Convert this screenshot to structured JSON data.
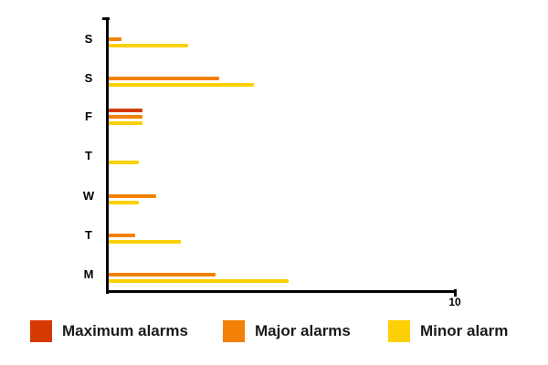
{
  "chart_data": {
    "type": "bar",
    "orientation": "horizontal",
    "title": "",
    "xlabel": "",
    "ylabel": "",
    "xlim": [
      0,
      10
    ],
    "x_axis_tick_label": "10",
    "grid": false,
    "legend_position": "bottom",
    "categories": [
      "S",
      "S",
      "F",
      "T",
      "W",
      "T",
      "M"
    ],
    "categories_note": "top-to-bottom; weekdays M..S reading bottom-up",
    "series": [
      {
        "name": "Maximum alarms",
        "color": "#D53A02",
        "values": [
          0,
          0,
          1.0,
          0,
          0,
          0,
          0
        ]
      },
      {
        "name": "Major alarms",
        "color": "#F28105",
        "values": [
          0.4,
          3.2,
          1.0,
          0,
          1.4,
          0.8,
          3.1
        ]
      },
      {
        "name": "Minor alarm",
        "color": "#FCD005",
        "values": [
          2.3,
          4.2,
          1.0,
          0.9,
          0.9,
          2.1,
          5.2
        ]
      }
    ]
  },
  "axis": {
    "max_tick_label": "10",
    "line_color": "#000000"
  }
}
